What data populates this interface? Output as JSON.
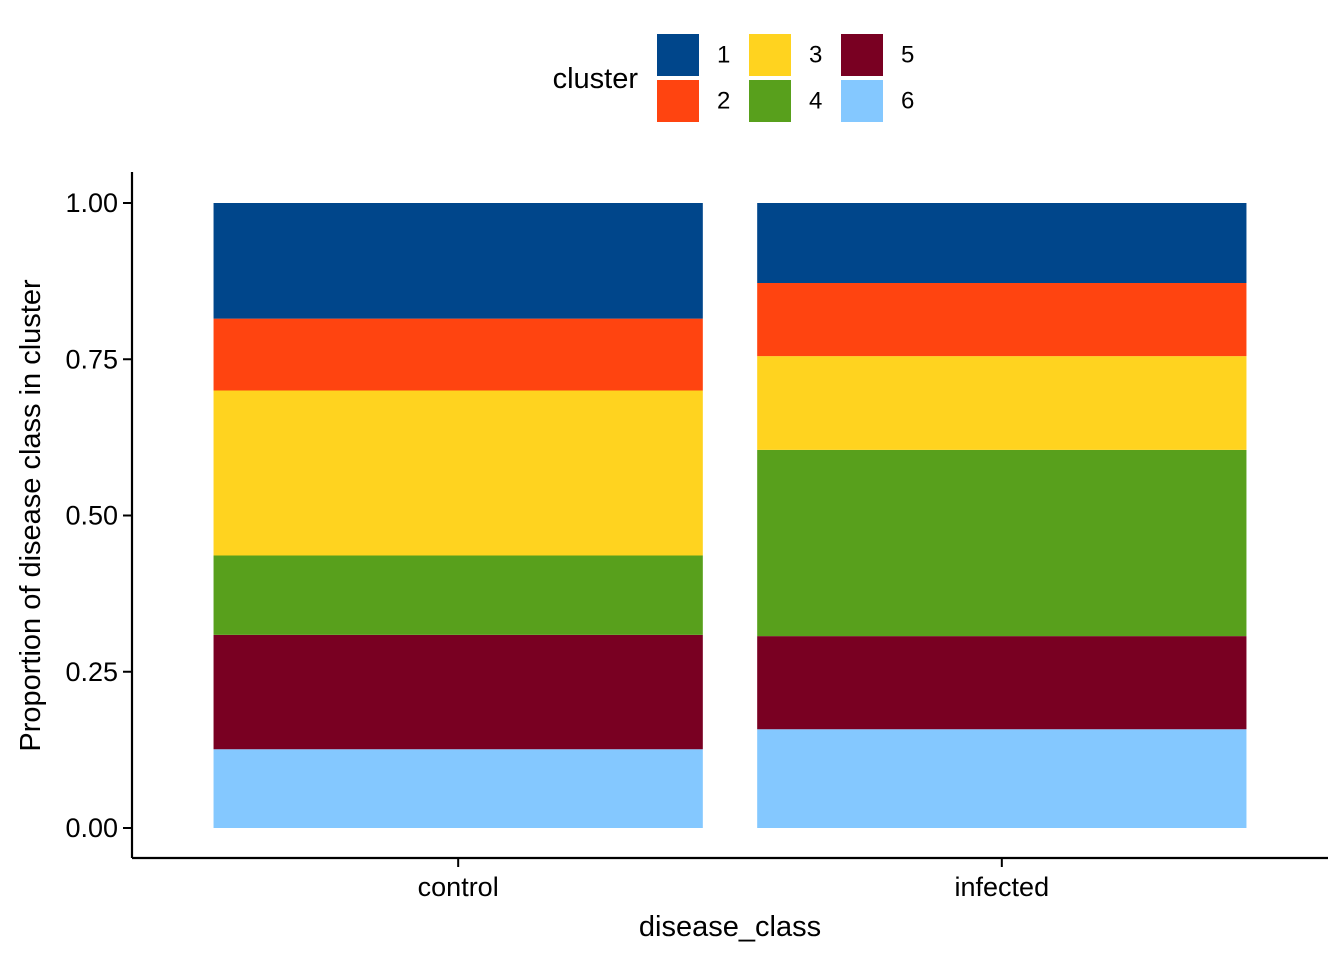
{
  "chart_data": {
    "type": "bar",
    "stacked": true,
    "xlabel": "disease_class",
    "ylabel": "Proportion of disease class in cluster",
    "ylim": [
      0,
      1
    ],
    "yticks": [
      0,
      0.25,
      0.5,
      0.75,
      1
    ],
    "ytick_labels": [
      "0.00",
      "0.25",
      "0.50",
      "0.75",
      "1.00"
    ],
    "categories": [
      "control",
      "infected"
    ],
    "grid": false,
    "legend": {
      "title": "cluster",
      "position": "top"
    },
    "series": [
      {
        "name": "1",
        "color": "#00468B",
        "values": [
          0.185,
          0.128
        ]
      },
      {
        "name": "2",
        "color": "#FF4410",
        "values": [
          0.115,
          0.117
        ]
      },
      {
        "name": "3",
        "color": "#FFD31F",
        "values": [
          0.264,
          0.15
        ]
      },
      {
        "name": "4",
        "color": "#58A01C",
        "values": [
          0.127,
          0.298
        ]
      },
      {
        "name": "5",
        "color": "#790022",
        "values": [
          0.183,
          0.149
        ]
      },
      {
        "name": "6",
        "color": "#84C8FF",
        "values": [
          0.126,
          0.158
        ]
      }
    ]
  }
}
